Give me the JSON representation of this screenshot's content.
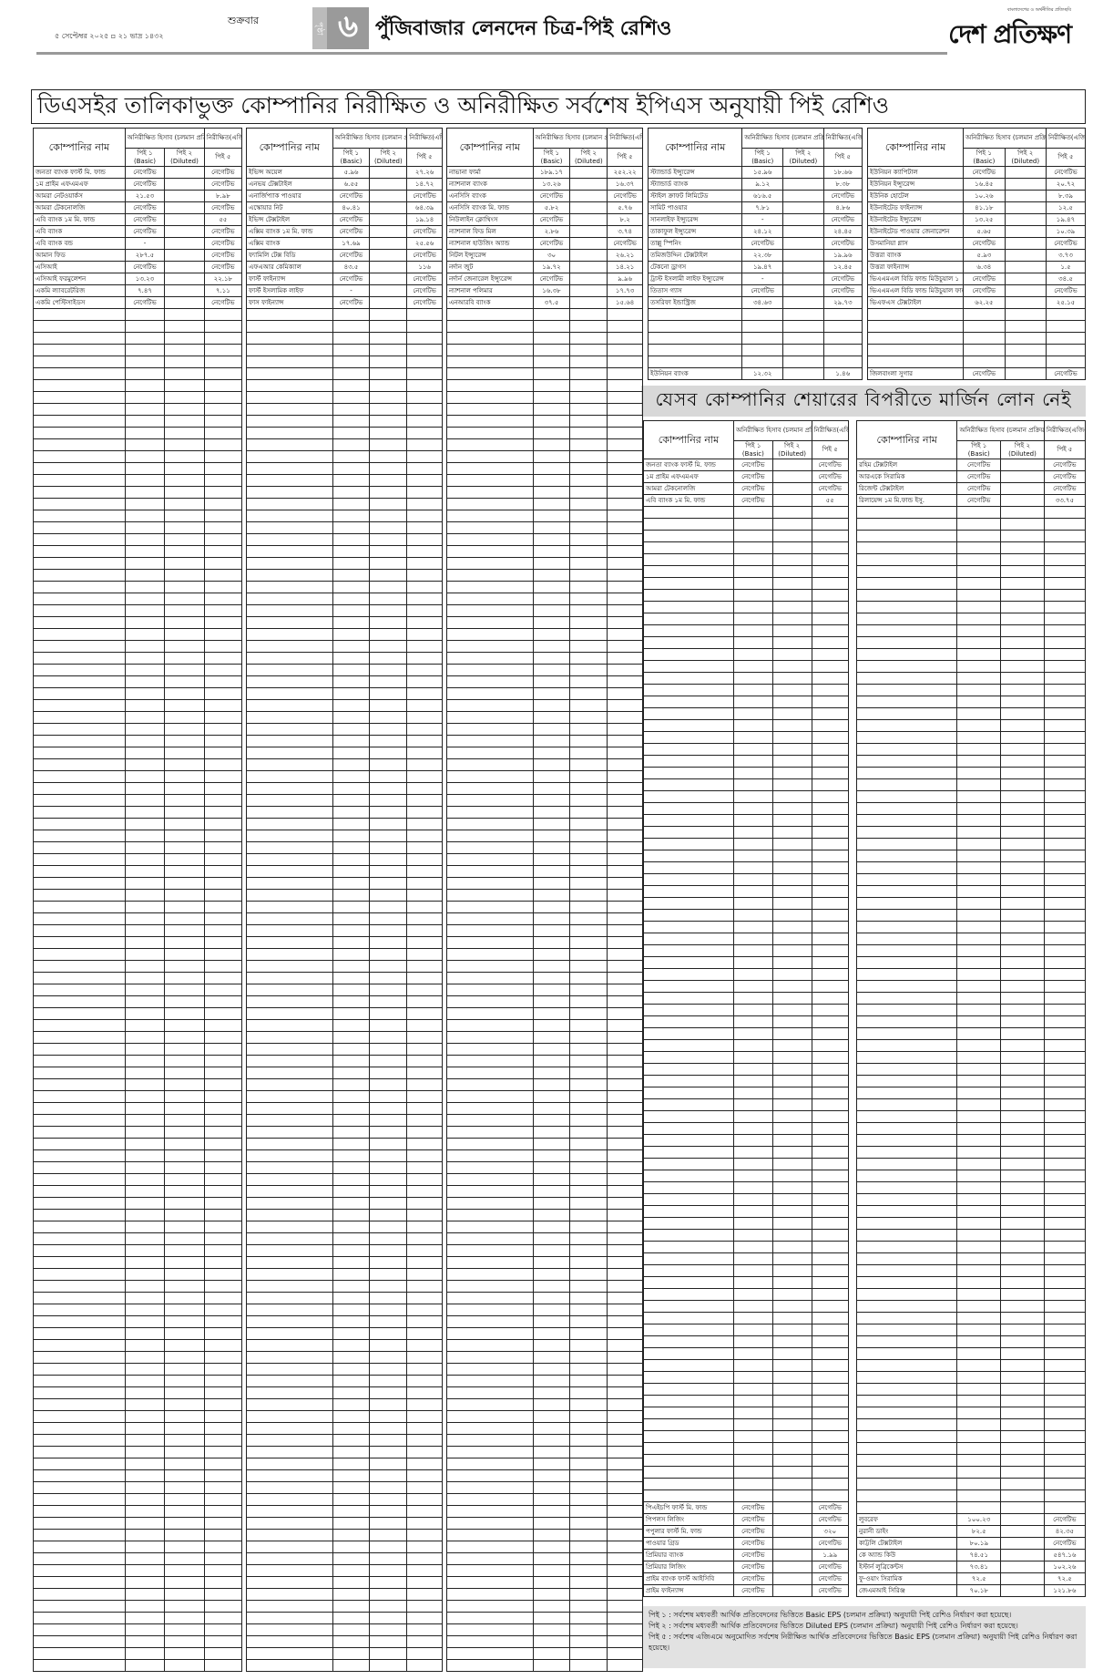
{
  "header": {
    "day": "শুক্রবার",
    "date": "৫ সেপ্টেম্বর ২০২৫ ▫ ২১ ভাদ্র ১৪৩২",
    "page_label": "পৃষ্ঠা",
    "page_number": "৬",
    "section_title": "পুঁজিবাজার লেনদেন চিত্র-পিই রেশিও",
    "logo_tagline": "বাংলাদেশের ও অর্থনীতির প্রতিচ্ছবি",
    "logo_name": "দেশ প্রতিক্ষণ"
  },
  "main_title": "ডিএসইর তালিকাভুক্ত কোম্পানির নিরীক্ষিত ও অনিরীক্ষিত সর্বশেষ ইপিএস অনুযায়ী পিই রেশিও",
  "margin_title": "যেসব কোম্পানির শেয়ারের বিপরীতে মার্জিন লোন নেই",
  "columns": {
    "company": "কোম্পানির নাম",
    "unaudited": "অনিরীক্ষিত হিসাব (চলমান প্রক্রিয়া অনুযায়ী)",
    "audited": "নিরীক্ষিত(এজিএম অনুযায়ী)",
    "pe1": "পিই ১",
    "basic": "(Basic)",
    "pe2": "পিই ২",
    "diluted": "(Diluted)",
    "pe5": "পিই ৫"
  },
  "tables": [
    {
      "rows": [
        [
          "জনতা ব্যাংক ফার্স্ট মি. ফান্ড",
          "নেগেটিভ",
          "",
          "নেগেটিভ"
        ],
        [
          "১ম প্রাইম এফএমএফ",
          "নেগেটিভ",
          "",
          "নেগেটিভ"
        ],
        [
          "আমরা নেটওয়ার্কস",
          "২১.৫৩",
          "",
          "৮.৯৮"
        ],
        [
          "আমরা টেকনোলজি",
          "নেগেটিভ",
          "",
          "নেগেটিভ"
        ],
        [
          "এবি ব্যাংক ১ম মি. ফান্ড",
          "নেগেটিভ",
          "",
          "৫৫"
        ],
        [
          "এবি ব্যাংক",
          "নেগেটিভ",
          "",
          "নেগেটিভ"
        ],
        [
          "এবি ব্যাংক বন্ড",
          "-",
          "",
          "নেগেটিভ"
        ],
        [
          "আমান ফিড",
          "২৮৭.৫",
          "",
          "নেগেটিভ"
        ],
        [
          "এসিআই",
          "নেগেটিভ",
          "",
          "নেগেটিভ"
        ],
        [
          "এসিআই ফরমুলেশন",
          "১৩.২৩",
          "",
          "২২.১৮"
        ],
        [
          "একমি ল্যাবরেটরিজ",
          "৭.৪৭",
          "",
          "৭.১১"
        ],
        [
          "একমি পেস্টিসাইডস",
          "নেগেটিভ",
          "",
          "নেগেটিভ"
        ]
      ],
      "end_rows": []
    },
    {
      "rows": [
        [
          "ইভিন্স অয়েল",
          "৫.৯৬",
          "",
          "২৭.২৬"
        ],
        [
          "এনভয় টেক্সটাইল",
          "৬.৫৫",
          "",
          "১৪.৭২"
        ],
        [
          "এনার্জিপ্যাক পাওয়ার",
          "নেগেটিভ",
          "",
          "নেগেটিভ"
        ],
        [
          "এস্কোয়ার নিট",
          "৪০.৪১",
          "",
          "৬৪.৩৯"
        ],
        [
          "ইভিন্স টেক্সটাইল",
          "নেগেটিভ",
          "",
          "১৯.১৪"
        ],
        [
          "এক্সিম ব্যাংক ১ম মি. ফান্ড",
          "নেগেটিভ",
          "",
          "নেগেটিভ"
        ],
        [
          "এক্সিম ব্যাংক",
          "১৭.৬৯",
          "",
          "২৫.৫৬"
        ],
        [
          "ফ্যামিলি টেক্স বিডি",
          "নেগেটিভ",
          "",
          "নেগেটিভ"
        ],
        [
          "এফএআর কেমিক্যাল",
          "৪৩.৫",
          "",
          "১১৬"
        ],
        [
          "ফার্স্ট ফাইন্যান্স",
          "নেগেটিভ",
          "",
          "নেগেটিভ"
        ],
        [
          "ফার্স্ট ইসলামিক লাইফ",
          "-",
          "",
          "নেগেটিভ"
        ],
        [
          "ফাস ফাইন্যান্স",
          "নেগেটিভ",
          "",
          "নেগেটিভ"
        ]
      ],
      "end_rows": []
    },
    {
      "rows": [
        [
          "নাভানা ফার্মা",
          "১৮৯.১৭",
          "",
          "২৫২.২২"
        ],
        [
          "ন্যাশনাল ব্যাংক",
          "১৩.২৬",
          "",
          "১৬.৩৭"
        ],
        [
          "এনসিসি ব্যাংক",
          "নেগেটিভ",
          "",
          "নেগেটিভ"
        ],
        [
          "এনসিসি ব্যাংক মি. ফান্ড",
          "৫.৮২",
          "",
          "৫.৭৬"
        ],
        [
          "নিউলাইন ক্লোথিংস",
          "নেগেটিভ",
          "",
          "৮.২"
        ],
        [
          "ন্যাশনাল ফিড মিল",
          "২.৮৬",
          "",
          "৩.৭৪"
        ],
        [
          "ন্যাশনাল হাউজিং অ্যান্ড",
          "নেগেটিভ",
          "",
          "নেগেটিভ"
        ],
        [
          "নিটল ইন্স্যুরেন্স",
          "৩০",
          "",
          "২৬.২১"
        ],
        [
          "নর্দান জুট",
          "১৯.৭২",
          "",
          "১৪.২১"
        ],
        [
          "নর্দার্ন জেনারেল ইন্স্যুরেন্স",
          "নেগেটিভ",
          "",
          "৯.৯৬"
        ],
        [
          "ন্যাশনাল পলিমার",
          "১৬.৩৮",
          "",
          "১৭.৭৩"
        ],
        [
          "এনআরবি ব্যাংক",
          "৩৭.৫",
          "",
          "১৫.৬৪"
        ]
      ],
      "end_rows": []
    },
    {
      "rows": [
        [
          "স্ট্যান্ডার্ড ইন্স্যুরেন্স",
          "১৫.৯৬",
          "",
          "১৮.৬৬"
        ],
        [
          "স্ট্যান্ডার্ড ব্যাংক",
          "৯.১২",
          "",
          "৮.৩৮"
        ],
        [
          "স্টাইল ক্রাফট লিমিটেড",
          "৬১৬.৫",
          "",
          "নেগেটিভ"
        ],
        [
          "সামিট পাওয়ার",
          "৭.৮১",
          "",
          "৪.৮৬"
        ],
        [
          "সানলাইফ ইন্স্যুরেন্স",
          "-",
          "",
          "নেগেটিভ"
        ],
        [
          "তাকাফুল ইন্স্যুরেন্স",
          "২৪.১২",
          "",
          "২৪.৪৫"
        ],
        [
          "তাল্লু স্পিনিং",
          "নেগেটিভ",
          "",
          "নেগেটিভ"
        ],
        [
          "তমিজউদ্দিন টেক্সটাইল",
          "২২.৩৮",
          "",
          "১৯.৯৬"
        ],
        [
          "টেকনো ড্রাগস",
          "১৯.৪৭",
          "",
          "১২.৪৫"
        ],
        [
          "ট্রাস্ট ইসলামী লাইফ ইন্স্যুরেন্স",
          "-",
          "",
          "নেগেটিভ"
        ],
        [
          "তিতাস গ্যাস",
          "নেগেটিভ",
          "",
          "নেগেটিভ"
        ],
        [
          "তসরিফা ইন্ডাস্ট্রিজ",
          "৩৪.৬৩",
          "",
          "২৯.৭৩"
        ]
      ],
      "end_rows": [
        [
          "ইউনিয়ন ব্যাংক",
          "১২.৩২",
          "",
          "১.৪৬"
        ]
      ]
    },
    {
      "rows": [
        [
          "ইউনিয়ন ক্যাপিটাল",
          "নেগেটিভ",
          "",
          "নেগেটিভ"
        ],
        [
          "ইউনিয়ন ইন্স্যুরেন্স",
          "১৬.৪৫",
          "",
          "২০.৭২"
        ],
        [
          "ইউনিক হোটেল",
          "১০.২৬",
          "",
          "৮.৩৯"
        ],
        [
          "ইউনাইটেড ফাইন্যান্স",
          "৪১.১৮",
          "",
          "১২.৫"
        ],
        [
          "ইউনাইটেড ইন্স্যুরেন্স",
          "১৩.২৫",
          "",
          "১৯.৪৭"
        ],
        [
          "ইউনাইটেড পাওয়ার জেনারেশন",
          "৫.৬৫",
          "",
          "১০.৩৯"
        ],
        [
          "উসমানিয়া গ্লাস",
          "নেগেটিভ",
          "",
          "নেগেটিভ"
        ],
        [
          "উত্তরা ব্যাংক",
          "৫.৯৩",
          "",
          "৩.৭৩"
        ],
        [
          "উত্তরা ফাইন্যান্স",
          "৬.৩৪",
          "",
          "১.৫"
        ],
        [
          "ভিএএমএল বিডি ফান্ড মিউচুয়াল ১",
          "নেগেটিভ",
          "",
          "৩৪.৫"
        ],
        [
          "ভিএএমএল বিডি ফান্ড মিউচুয়াল ফান্ড",
          "নেগেটিভ",
          "",
          "নেগেটিভ"
        ],
        [
          "ভিএফএস টেক্সটাইল",
          "৬২.২৫",
          "",
          "২৫.১৫"
        ]
      ],
      "end_rows": [
        [
          "জিলবাংলা সুগার",
          "নেগেটিভ",
          "",
          "নেগেটিভ"
        ]
      ]
    },
    {
      "rows": [
        [
          "জনতা ব্যাংক ফার্স্ট মি. ফান্ড",
          "নেগেটিভ",
          "",
          "নেগেটিভ"
        ],
        [
          "১ম প্রাইম এফএমএফ",
          "নেগেটিভ",
          "",
          "নেগেটিভ"
        ],
        [
          "আমরা টেকনোলজি",
          "নেগেটিভ",
          "",
          "নেগেটিভ"
        ],
        [
          "এবি ব্যাংক ১ম মি. ফান্ড",
          "নেগেটিভ",
          "",
          "৫৫"
        ]
      ],
      "end_rows": [
        [
          "পিএইচপি ফার্স্ট মি. ফান্ড",
          "নেগেটিভ",
          "",
          "নেগেটিভ"
        ],
        [
          "পিপলস লিজিং",
          "নেগেটিভ",
          "",
          "নেগেটিভ"
        ],
        [
          "পপুলার ফার্স্ট মি. ফান্ড",
          "নেগেটিভ",
          "",
          "৩২০"
        ],
        [
          "পাওয়ার গ্রিড",
          "নেগেটিভ",
          "",
          "নেগেটিভ"
        ],
        [
          "প্রিমিয়ার ব্যাংক",
          "নেগেটিভ",
          "",
          "১.৯৯"
        ],
        [
          "প্রিমিয়ার লিজিং",
          "নেগেটিভ",
          "",
          "নেগেটিভ"
        ],
        [
          "প্রাইম ব্যাংক ফার্স্ট আইসিবি",
          "নেগেটিভ",
          "",
          "নেগেটিভ"
        ],
        [
          "প্রাইম ফাইন্যান্স",
          "নেগেটিভ",
          "",
          "নেগেটিভ"
        ]
      ]
    },
    {
      "rows": [
        [
          "রহিম টেক্সটাইল",
          "নেগেটিভ",
          "",
          "নেগেটিভ"
        ],
        [
          "আরএকে সিরামিক",
          "নেগেটিভ",
          "",
          "নেগেটিভ"
        ],
        [
          "রিজেন্ট টেক্সটাইল",
          "নেগেটিভ",
          "",
          "নেগেটিভ"
        ],
        [
          "রিলায়েন্স ১ম মি.ফান্ড ইসু.",
          "নেগেটিভ",
          "",
          "৩৩.৭৫"
        ]
      ],
      "end_rows": [
        [
          "লুবরেফ",
          "১০০.২৩",
          "",
          "নেগেটিভ"
        ],
        [
          "নুরানী ডাইং",
          "৮২.৫",
          "",
          "৪২.৩৫"
        ],
        [
          "কাট্টলি টেক্সটাইল",
          "৮০.১৯",
          "",
          "নেগেটিভ"
        ],
        [
          "কে অ্যান্ড কিউ",
          "৭৪.৫১",
          "",
          "৫৪৭.১৬"
        ],
        [
          "ইস্টার্ন লুব্রিকেন্টস",
          "৭৩.৪১",
          "",
          "১০২.২৬"
        ],
        [
          "ফু-ওয়াং সিরামিক",
          "৭২.৫",
          "",
          "৭২.৫"
        ],
        [
          "জেএমআই সিরিঞ্জ",
          "৭০.১৮",
          "",
          "১২১.৮৬"
        ]
      ]
    }
  ],
  "notes": [
    "পিই ১ : সর্বশেষ মধ্যবর্তী আর্থিক প্রতিবেদনের ভিত্তিতে Basic EPS (চলমান প্রক্রিয়া) অনুযায়ী পিই রেশিও নির্ধারণ করা হয়েছে।",
    "পিই ২ : সর্বশেষ মধ্যবর্তী আর্থিক প্রতিবেদনের ভিত্তিতে Diluted EPS (চলমান প্রক্রিয়া) অনুযায়ী পিই রেশিও নির্ধারণ করা হয়েছে।",
    "পিই ৫ : সর্বশেষ এজিএমে অনুমোদিত সর্বশেষ নিরীক্ষিত আর্থিক প্রতিবেদনের ভিত্তিতে Basic EPS (চলমান প্রক্রিয়া) অনুযায়ী পিই রেশিও নির্ধারণ করা হয়েছে।"
  ]
}
